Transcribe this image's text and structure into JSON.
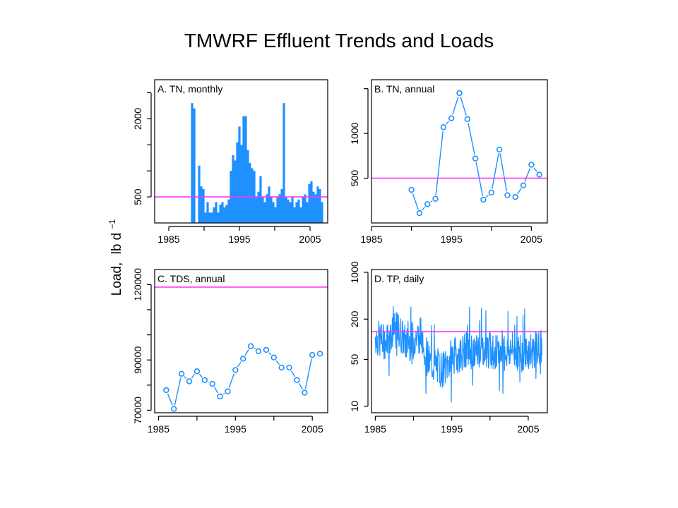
{
  "title": "TMWRF Effluent Trends and Loads",
  "ylabel_main": "Load,",
  "ylabel_unit": "lb d",
  "ylabel_exp": "−1",
  "colors": {
    "series": "#1e90ff",
    "reference": "#ff33ff",
    "axis": "#000000"
  },
  "chart_data": [
    {
      "id": "A",
      "type": "bar",
      "panel_label": "A. TN, monthly",
      "xlim": [
        1983,
        2007.5
      ],
      "ylim": [
        0,
        2750
      ],
      "xticks": [
        1985,
        1990,
        1995,
        2000,
        2005
      ],
      "xtick_labels": [
        "1985",
        "",
        "1995",
        "",
        "2005"
      ],
      "yticks": [
        500,
        1000,
        1500,
        2000,
        2500
      ],
      "ytick_labels": [
        "500",
        "",
        "",
        "2000",
        ""
      ],
      "reference_line": 500,
      "series": [
        {
          "x": [
            1988.3,
            1988.6,
            1989.3,
            1989.6,
            1989.9,
            1990.2,
            1990.5,
            1990.8,
            1991.1,
            1991.4,
            1991.7,
            1992.0,
            1992.3,
            1992.6,
            1992.9,
            1993.2,
            1993.5,
            1993.8,
            1994.1,
            1994.4,
            1994.7,
            1995.0,
            1995.3,
            1995.6,
            1995.9,
            1996.2,
            1996.5,
            1996.8,
            1997.1,
            1997.4,
            1997.7,
            1998.0,
            1998.3,
            1998.6,
            1998.9,
            1999.2,
            1999.5,
            1999.8,
            2000.1,
            2000.4,
            2000.7,
            2001.0,
            2001.3,
            2001.6,
            2001.9,
            2002.2,
            2002.5,
            2002.8,
            2003.1,
            2003.4,
            2003.7,
            2004.0,
            2004.3,
            2004.6,
            2004.9,
            2005.2,
            2005.5,
            2005.8,
            2006.1,
            2006.4,
            2006.7
          ],
          "values": [
            2300,
            2200,
            1100,
            700,
            650,
            200,
            400,
            200,
            200,
            300,
            400,
            200,
            350,
            400,
            300,
            350,
            450,
            1000,
            1300,
            1200,
            1550,
            1850,
            1500,
            2050,
            2050,
            1400,
            1150,
            1050,
            1000,
            500,
            600,
            900,
            500,
            400,
            550,
            700,
            500,
            400,
            300,
            500,
            550,
            650,
            2300,
            500,
            450,
            400,
            500,
            300,
            400,
            450,
            300,
            500,
            550,
            400,
            750,
            800,
            600,
            550,
            700,
            650,
            400
          ]
        }
      ]
    },
    {
      "id": "B",
      "type": "line",
      "panel_label": "B. TN, annual",
      "xlim": [
        1985,
        2007
      ],
      "ylim": [
        0,
        1600
      ],
      "xticks": [
        1985,
        1990,
        1995,
        2000,
        2005
      ],
      "xtick_labels": [
        "1985",
        "",
        "1995",
        "",
        "2005"
      ],
      "yticks": [
        500,
        1000,
        1500
      ],
      "ytick_labels": [
        "500",
        "1000",
        ""
      ],
      "reference_line": 500,
      "series": [
        {
          "x": [
            1990,
            1991,
            1992,
            1993,
            1994,
            1995,
            1996,
            1997,
            1998,
            1999,
            2000,
            2001,
            2002,
            2003,
            2004,
            2005,
            2006
          ],
          "values": [
            370,
            110,
            210,
            270,
            1070,
            1170,
            1450,
            1160,
            720,
            260,
            340,
            820,
            310,
            290,
            420,
            650,
            540
          ]
        }
      ]
    },
    {
      "id": "C",
      "type": "line",
      "panel_label": "C. TDS, annual",
      "xlim": [
        1984.5,
        2007
      ],
      "ylim": [
        69000,
        126000
      ],
      "xticks": [
        1985,
        1990,
        1995,
        2000,
        2005
      ],
      "xtick_labels": [
        "1985",
        "",
        "1995",
        "",
        "2005"
      ],
      "yticks": [
        70000,
        80000,
        90000,
        100000,
        110000,
        120000
      ],
      "ytick_labels": [
        "70000",
        "",
        "90000",
        "",
        "",
        "120000"
      ],
      "reference_line": 119000,
      "series": [
        {
          "x": [
            1986,
            1987,
            1988,
            1989,
            1990,
            1991,
            1992,
            1993,
            1994,
            1995,
            1996,
            1997,
            1998,
            1999,
            2000,
            2001,
            2002,
            2003,
            2004,
            2005,
            2006
          ],
          "values": [
            78000,
            70500,
            84500,
            81500,
            85500,
            82000,
            80500,
            75500,
            77500,
            86000,
            90500,
            95500,
            93500,
            94000,
            91000,
            87000,
            87000,
            82000,
            77000,
            92000,
            92500
          ]
        }
      ]
    },
    {
      "id": "D",
      "type": "line",
      "panel_label": "D. TP, daily",
      "scale": "log",
      "xlim": [
        1984.5,
        2007.5
      ],
      "ylim": [
        8,
        1100
      ],
      "xticks": [
        1985,
        1990,
        1995,
        2000,
        2005
      ],
      "xtick_labels": [
        "1985",
        "",
        "1995",
        "",
        "2005"
      ],
      "yticks": [
        10,
        50,
        200,
        1000
      ],
      "ytick_labels": [
        "10",
        "50",
        "200",
        "1000"
      ],
      "reference_line": 130,
      "series": [
        {
          "x": [
            1985,
            1986,
            1987,
            1988,
            1989,
            1990,
            1991,
            1992,
            1993,
            1994,
            1995,
            1996,
            1997,
            1998,
            1999,
            2000,
            2001,
            2002,
            2003,
            2004,
            2005,
            2006,
            2007
          ],
          "values": [
            110,
            90,
            120,
            140,
            85,
            100,
            120,
            45,
            40,
            35,
            55,
            60,
            70,
            65,
            75,
            70,
            60,
            65,
            70,
            60,
            65,
            70,
            75
          ]
        }
      ]
    }
  ]
}
